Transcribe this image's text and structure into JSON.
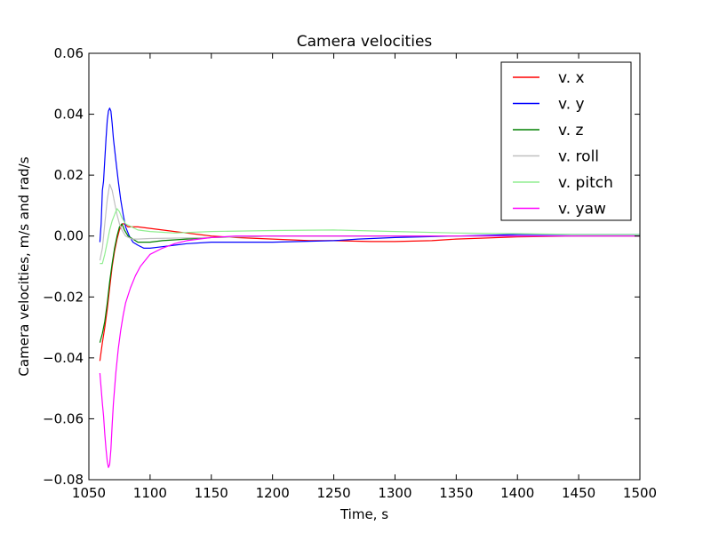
{
  "chart_data": {
    "type": "line",
    "title": "Camera velocities",
    "xlabel": "Time, s",
    "ylabel": "Camera velocities, m/s and rad/s",
    "xlim": [
      1050,
      1500
    ],
    "ylim": [
      -0.08,
      0.06
    ],
    "x_ticks": [
      1050,
      1100,
      1150,
      1200,
      1250,
      1300,
      1350,
      1400,
      1450,
      1500
    ],
    "y_ticks": [
      -0.08,
      -0.06,
      -0.04,
      -0.02,
      0.0,
      0.02,
      0.04,
      0.06
    ],
    "x_tick_labels": [
      "1050",
      "1100",
      "1150",
      "1200",
      "1250",
      "1300",
      "1350",
      "1400",
      "1450",
      "1500"
    ],
    "y_tick_labels": [
      "−0.08",
      "−0.06",
      "−0.04",
      "−0.02",
      "0.00",
      "0.02",
      "0.04",
      "0.06"
    ],
    "grid": false,
    "legend_position": "top-right",
    "series": [
      {
        "name": "v. x",
        "color": "#ff0000",
        "x": [
          1059,
          1061,
          1063,
          1065,
          1067,
          1069,
          1071,
          1073,
          1075,
          1077,
          1079,
          1082,
          1086,
          1090,
          1100,
          1110,
          1120,
          1130,
          1140,
          1150,
          1170,
          1200,
          1230,
          1250,
          1280,
          1300,
          1330,
          1350,
          1400,
          1450,
          1500
        ],
        "y": [
          -0.041,
          -0.035,
          -0.03,
          -0.024,
          -0.017,
          -0.01,
          -0.005,
          -0.001,
          0.002,
          0.004,
          0.004,
          0.003,
          0.003,
          0.003,
          0.0025,
          0.002,
          0.0015,
          0.001,
          0.0005,
          0.0,
          -0.0005,
          -0.001,
          -0.0015,
          -0.0015,
          -0.0018,
          -0.0018,
          -0.0015,
          -0.001,
          -0.0003,
          0.0,
          0.0
        ]
      },
      {
        "name": "v. y",
        "color": "#0000ff",
        "x": [
          1059,
          1060,
          1061,
          1062,
          1063,
          1064,
          1065,
          1066,
          1067,
          1068,
          1069,
          1070,
          1072,
          1074,
          1076,
          1078,
          1080,
          1083,
          1086,
          1090,
          1095,
          1100,
          1110,
          1120,
          1130,
          1150,
          1200,
          1250,
          1270,
          1300,
          1350,
          1400,
          1450,
          1500
        ],
        "y": [
          -0.002,
          0.004,
          0.015,
          0.018,
          0.025,
          0.032,
          0.038,
          0.041,
          0.042,
          0.041,
          0.037,
          0.032,
          0.025,
          0.018,
          0.012,
          0.007,
          0.003,
          0.0,
          -0.002,
          -0.003,
          -0.004,
          -0.004,
          -0.0035,
          -0.003,
          -0.0025,
          -0.002,
          -0.002,
          -0.0015,
          -0.001,
          -0.0005,
          0.0,
          0.0005,
          0.0005,
          0.0005
        ]
      },
      {
        "name": "v. z",
        "color": "#008000",
        "x": [
          1059,
          1061,
          1063,
          1065,
          1067,
          1069,
          1071,
          1073,
          1075,
          1077,
          1079,
          1082,
          1086,
          1090,
          1100,
          1110,
          1130,
          1150,
          1200,
          1250,
          1300,
          1400,
          1500
        ],
        "y": [
          -0.035,
          -0.032,
          -0.028,
          -0.022,
          -0.015,
          -0.009,
          -0.004,
          0.0,
          0.003,
          0.004,
          0.002,
          0.0,
          -0.001,
          -0.002,
          -0.002,
          -0.0015,
          -0.001,
          -0.0005,
          0.0,
          0.0,
          0.0,
          0.0,
          0.0
        ]
      },
      {
        "name": "v. roll",
        "color": "#c0c0c0",
        "x": [
          1059,
          1061,
          1063,
          1065,
          1067,
          1069,
          1071,
          1073,
          1075,
          1077,
          1080,
          1085,
          1090,
          1100,
          1150,
          1200,
          1300,
          1400,
          1500
        ],
        "y": [
          -0.008,
          -0.004,
          0.004,
          0.012,
          0.017,
          0.015,
          0.011,
          0.007,
          0.004,
          0.002,
          0.0,
          -0.001,
          -0.001,
          -0.0008,
          -0.0005,
          0.0,
          0.0,
          0.0,
          0.0
        ]
      },
      {
        "name": "v. pitch",
        "color": "#90ee90",
        "x": [
          1059,
          1061,
          1063,
          1065,
          1067,
          1069,
          1071,
          1073,
          1075,
          1077,
          1080,
          1085,
          1090,
          1100,
          1120,
          1150,
          1200,
          1250,
          1300,
          1350,
          1400,
          1450,
          1500
        ],
        "y": [
          -0.009,
          -0.009,
          -0.006,
          -0.002,
          0.002,
          0.005,
          0.007,
          0.009,
          0.008,
          0.006,
          0.004,
          0.003,
          0.002,
          0.0015,
          0.001,
          0.0015,
          0.0018,
          0.002,
          0.0015,
          0.001,
          0.0008,
          0.0005,
          0.0005
        ]
      },
      {
        "name": "v. yaw",
        "color": "#ff00ff",
        "x": [
          1059,
          1060,
          1061,
          1062,
          1063,
          1064,
          1065,
          1066,
          1067,
          1068,
          1069,
          1070,
          1072,
          1074,
          1076,
          1078,
          1080,
          1084,
          1088,
          1092,
          1096,
          1100,
          1110,
          1120,
          1130,
          1140,
          1150,
          1170,
          1200,
          1250,
          1300,
          1400,
          1500
        ],
        "y": [
          -0.045,
          -0.05,
          -0.055,
          -0.059,
          -0.065,
          -0.07,
          -0.074,
          -0.076,
          -0.075,
          -0.07,
          -0.062,
          -0.055,
          -0.045,
          -0.037,
          -0.031,
          -0.026,
          -0.022,
          -0.017,
          -0.013,
          -0.01,
          -0.008,
          -0.006,
          -0.004,
          -0.0025,
          -0.0015,
          -0.001,
          -0.0005,
          0.0,
          0.0,
          0.0,
          0.0,
          0.0,
          0.0
        ]
      }
    ]
  }
}
